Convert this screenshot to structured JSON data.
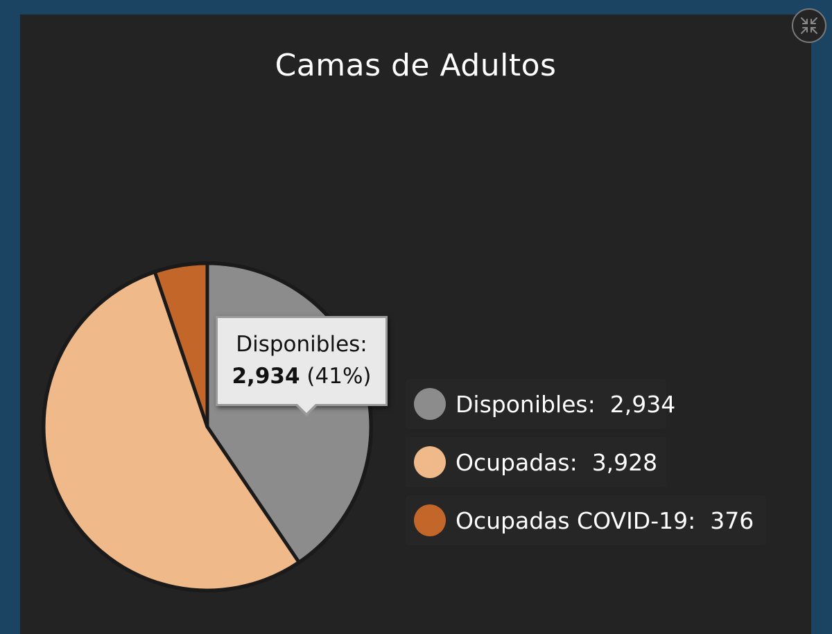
{
  "chart_data": {
    "type": "pie",
    "title": "Camas de Adultos",
    "slices": [
      {
        "name": "Disponibles",
        "value": 2934,
        "value_label": "2,934",
        "color": "#8c8c8c"
      },
      {
        "name": "Ocupadas",
        "value": 3928,
        "value_label": "3,928",
        "color": "#efb98a"
      },
      {
        "name": "Ocupadas COVID-19",
        "value": 376,
        "value_label": "376",
        "color": "#c2662a"
      }
    ],
    "legend_placement": "right",
    "tooltip": {
      "label": "Disponibles:",
      "value": "2,934",
      "percent": "(41%)"
    }
  },
  "colors": {
    "frame": "#1b4463",
    "panel": "#232323",
    "slice_outline": "#1a1a1a"
  },
  "icons": {
    "collapse": "collapse-arrows-icon"
  }
}
